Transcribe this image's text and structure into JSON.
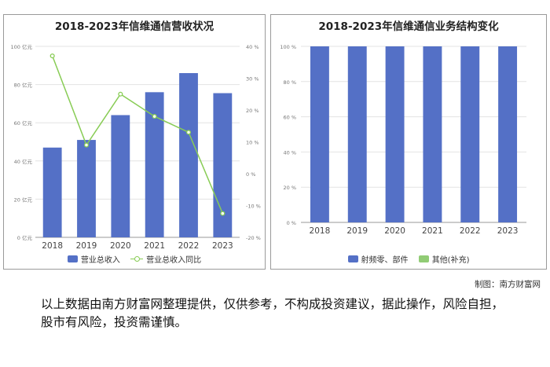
{
  "chart_data": [
    {
      "type": "bar",
      "title": "2018-2023年信维通信营收状况",
      "categories": [
        "2018",
        "2019",
        "2020",
        "2021",
        "2022",
        "2023"
      ],
      "series": [
        {
          "name": "营业总收入",
          "type": "bar",
          "axis": "left",
          "color": "#5470c6",
          "values": [
            47,
            51,
            64,
            76,
            86,
            75.5
          ]
        },
        {
          "name": "营业总收入同比",
          "type": "line",
          "axis": "right",
          "color": "#88cc55",
          "values": [
            37,
            9,
            25,
            18,
            13,
            -12.5
          ]
        }
      ],
      "ylim": [
        0,
        100
      ],
      "y_ticks": [
        "0 亿元",
        "20 亿元",
        "40 亿元",
        "60 亿元",
        "80 亿元",
        "100 亿元"
      ],
      "y2lim": [
        -20,
        40
      ],
      "y2_ticks": [
        "-20 %",
        "-10 %",
        "0 %",
        "10 %",
        "20 %",
        "30 %",
        "40 %"
      ],
      "grid": true,
      "legend_position": "bottom"
    },
    {
      "type": "bar",
      "title": "2018-2023年信维通信业务结构变化",
      "categories": [
        "2018",
        "2019",
        "2020",
        "2021",
        "2022",
        "2023"
      ],
      "stacked": true,
      "series": [
        {
          "name": "射频零、部件",
          "color": "#5470c6",
          "values": [
            100,
            100,
            100,
            100,
            100,
            100
          ]
        },
        {
          "name": "其他(补充)",
          "color": "#91cc75",
          "values": [
            0,
            0,
            0,
            0,
            0,
            0
          ]
        }
      ],
      "ylim": [
        0,
        100
      ],
      "y_ticks": [
        "0 %",
        "20 %",
        "40 %",
        "60 %",
        "80 %",
        "100 %"
      ],
      "grid": true,
      "legend_position": "bottom"
    }
  ],
  "credit": "制图：南方财富网",
  "disclaimer": "以上数据由南方财富网整理提供，仅供参考，不构成投资建议，据此操作，风险自担，股市有风险，投资需谨慎。"
}
